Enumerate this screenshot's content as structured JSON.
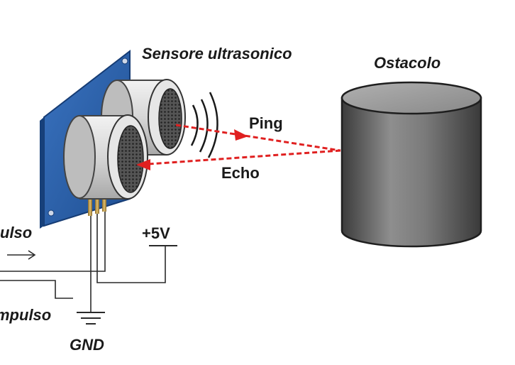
{
  "diagram": {
    "sensor_label": "Sensore ultrasonico",
    "obstacle_label": "Ostacolo",
    "ping_label": "Ping",
    "echo_label": "Echo",
    "vcc_label": "+5V",
    "trigger_label": "ulso",
    "echo_pin_label": "mpulso",
    "gnd_label": "GND"
  },
  "colors": {
    "board": "#2a5fa8",
    "signal_arrow": "#e02020",
    "obstacle": "#6b6b6b",
    "transducer": "#cfcfcf"
  }
}
